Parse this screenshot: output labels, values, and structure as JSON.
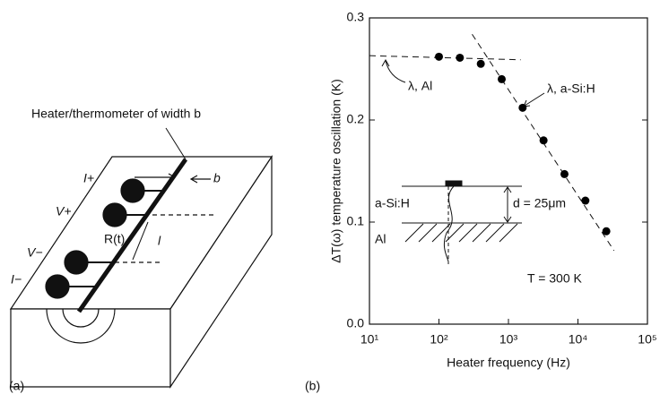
{
  "panel_a": {
    "label": "(a)",
    "heater_label": "Heater/thermometer of width b",
    "i_plus": "I+",
    "v_plus": "V+",
    "resistance": "R(t)",
    "v_minus": "V−",
    "i_minus": "I−",
    "width": "b",
    "length": "l"
  },
  "chart_data": {
    "type": "scatter",
    "panel_label": "(b)",
    "x_label": "Heater frequency (Hz)",
    "y_label": "ΔT(ω) temperature oscillation (K)",
    "x": [
      100,
      200,
      400,
      800,
      1600,
      3200,
      6400,
      12800,
      25600
    ],
    "values": [
      0.262,
      0.261,
      0.255,
      0.24,
      0.212,
      0.18,
      0.147,
      0.121,
      0.091
    ],
    "color": "#000000",
    "fit_lines": [
      {
        "x": [
          10,
          1500
        ],
        "y": [
          0.263,
          0.259
        ]
      },
      {
        "x": [
          300,
          33000
        ],
        "y": [
          0.284,
          0.072
        ]
      }
    ],
    "xlim": [
      10,
      100000
    ],
    "x_log": true,
    "xticks": [
      {
        "value": 10,
        "label": "10¹"
      },
      {
        "value": 100,
        "label": "10²"
      },
      {
        "value": 1000,
        "label": "10³"
      },
      {
        "value": 10000,
        "label": "10⁴"
      },
      {
        "value": 100000,
        "label": "10⁵"
      }
    ],
    "ylim": [
      0,
      0.3
    ],
    "yticks": [
      {
        "value": 0,
        "label": "0.0"
      },
      0.1,
      0.2,
      0.3
    ],
    "annotations": [
      "λ, Al",
      "λ, a-Si:H",
      "T = 300 K",
      "a-Si:H",
      "Al",
      "d = 25μm"
    ]
  }
}
